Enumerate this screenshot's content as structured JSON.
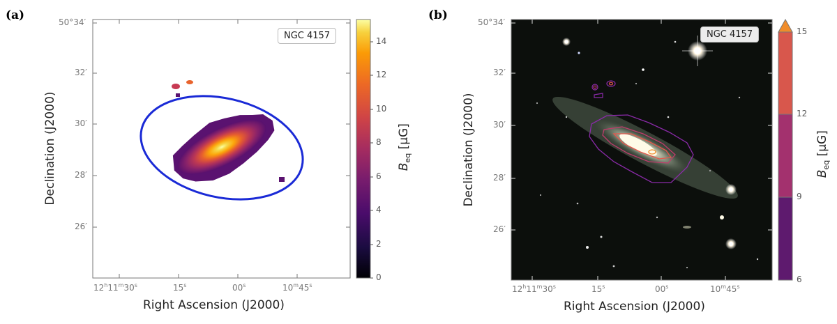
{
  "figure": {
    "panel_a_label": "(a)",
    "panel_b_label": "(b)",
    "object_name": "NGC 4157",
    "xlabel": "Right Ascension (J2000)",
    "ylabel": "Declination (J2000)",
    "x_ticks": [
      {
        "h": "12",
        "m": "11",
        "s": "30",
        "prefix": "h m",
        "kind": "full"
      },
      {
        "s": "15",
        "kind": "sec"
      },
      {
        "s": "00",
        "kind": "sec"
      },
      {
        "m": "10",
        "s": "45",
        "kind": "minsec"
      }
    ],
    "y_ticks": [
      "50°34′",
      "32′",
      "30′",
      "28′",
      "26′"
    ]
  },
  "chart_data": [
    {
      "type": "heatmap",
      "panel": "a",
      "title": "",
      "quantity": "Beq",
      "colorbar_label_main": "B",
      "colorbar_label_sub": "eq",
      "colorbar_unit": "[μG]",
      "colorbar_range": [
        0,
        15.3
      ],
      "colorbar_ticks": [
        "0",
        "2",
        "4",
        "6",
        "8",
        "10",
        "12",
        "14"
      ],
      "colormap": "inferno",
      "dec_range_arcmin": [
        24.2,
        34.0
      ],
      "peak_value": 15,
      "galaxy_position_angle_deg": -27,
      "overlay": "blue ellipse (region)",
      "overlay_color": "#1a2ad6"
    },
    {
      "type": "heatmap",
      "panel": "b",
      "title": "",
      "quantity": "Beq contours on optical image",
      "colorbar_label_main": "B",
      "colorbar_label_sub": "eq",
      "colorbar_unit": "[μG]",
      "colorbar_bins": [
        {
          "from": 6,
          "to": 9,
          "color": "#5e1a6e"
        },
        {
          "from": 9,
          "to": 12,
          "color": "#a3316e"
        },
        {
          "from": 12,
          "to": 15,
          "color": "#d8574c"
        }
      ],
      "colorbar_extend_color": "#f08c2a",
      "colorbar_ticks": [
        "6",
        "9",
        "12",
        "15"
      ],
      "contour_levels": [
        6,
        9,
        12,
        15
      ]
    }
  ]
}
